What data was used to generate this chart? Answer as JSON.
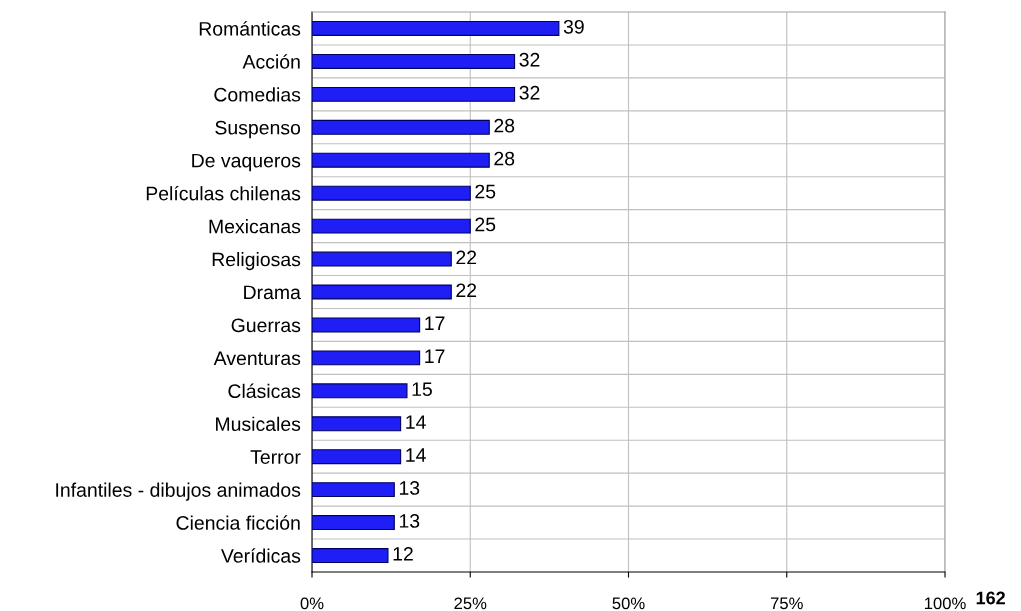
{
  "chart_data": {
    "type": "bar",
    "orientation": "horizontal",
    "categories": [
      "Románticas",
      "Acción",
      "Comedias",
      "Suspenso",
      "De vaqueros",
      "Películas chilenas",
      "Mexicanas",
      "Religiosas",
      "Drama",
      "Guerras",
      "Aventuras",
      "Clásicas",
      "Musicales",
      "Terror",
      "Infantiles - dibujos animados",
      "Ciencia ficción",
      "Verídicas"
    ],
    "values": [
      39,
      32,
      32,
      28,
      28,
      25,
      25,
      22,
      22,
      17,
      17,
      15,
      14,
      14,
      13,
      13,
      12
    ],
    "color": "#1f1ff5",
    "xlim": [
      0,
      100
    ],
    "xticks": [
      {
        "value": 0,
        "label": "0%"
      },
      {
        "value": 25,
        "label": "25%"
      },
      {
        "value": 50,
        "label": "50%"
      },
      {
        "value": 75,
        "label": "75%"
      },
      {
        "value": 100,
        "label": "100%"
      }
    ],
    "grid": true,
    "data_labels": true,
    "annotations": [
      "162"
    ]
  }
}
